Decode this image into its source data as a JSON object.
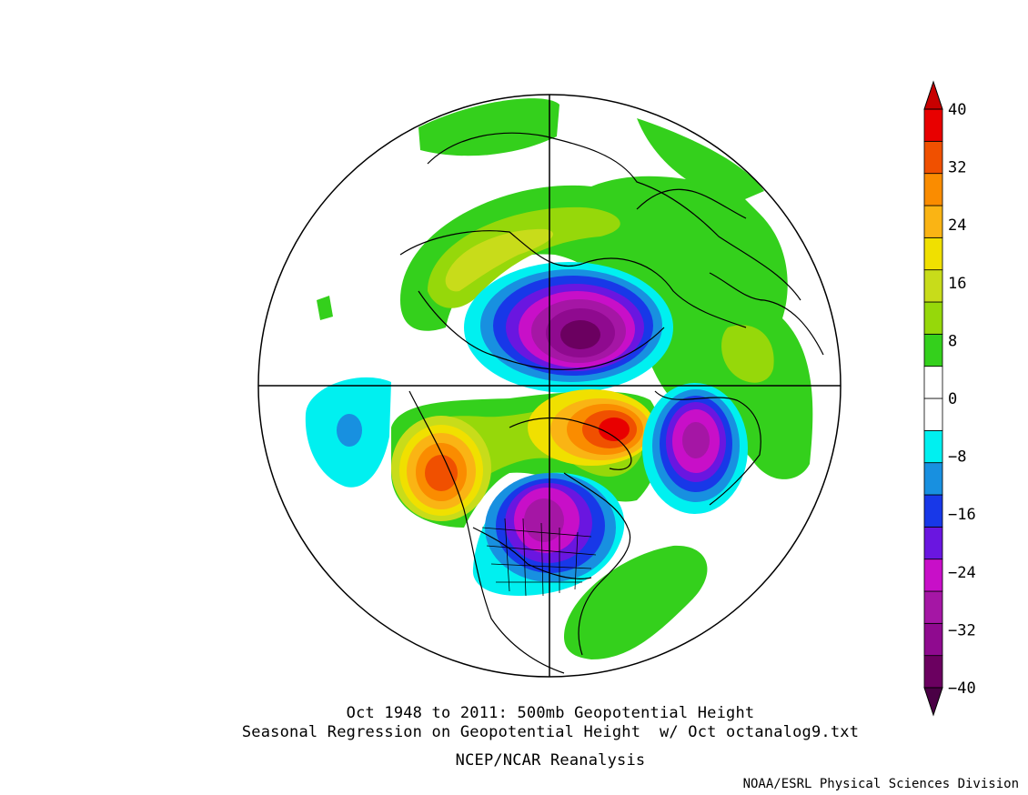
{
  "titles": {
    "line1": "Oct 1948 to 2011: 500mb Geopotential Height",
    "line2": "Seasonal Regression on Geopotential Height  w/ Oct octanalog9.txt",
    "line3": "NCEP/NCAR Reanalysis",
    "credit": "NOAA/ESRL Physical Sciences Division"
  },
  "colorbar": {
    "ticks": [
      "40",
      "32",
      "24",
      "16",
      "8",
      "0",
      "−8",
      "−16",
      "−24",
      "−32",
      "−40"
    ],
    "colors": [
      "#6b0060",
      "#8f0a8f",
      "#a516a5",
      "#c80fc8",
      "#6a16e0",
      "#1838e8",
      "#1890e0",
      "#00f0f0",
      "#ffffff",
      "#ffffff",
      "#34d01c",
      "#96d80a",
      "#c8dc1a",
      "#f0e000",
      "#fab414",
      "#fa8c00",
      "#f05000",
      "#e80000"
    ],
    "arrow_low_color": "#4a0045",
    "arrow_high_color": "#c80000"
  }
}
